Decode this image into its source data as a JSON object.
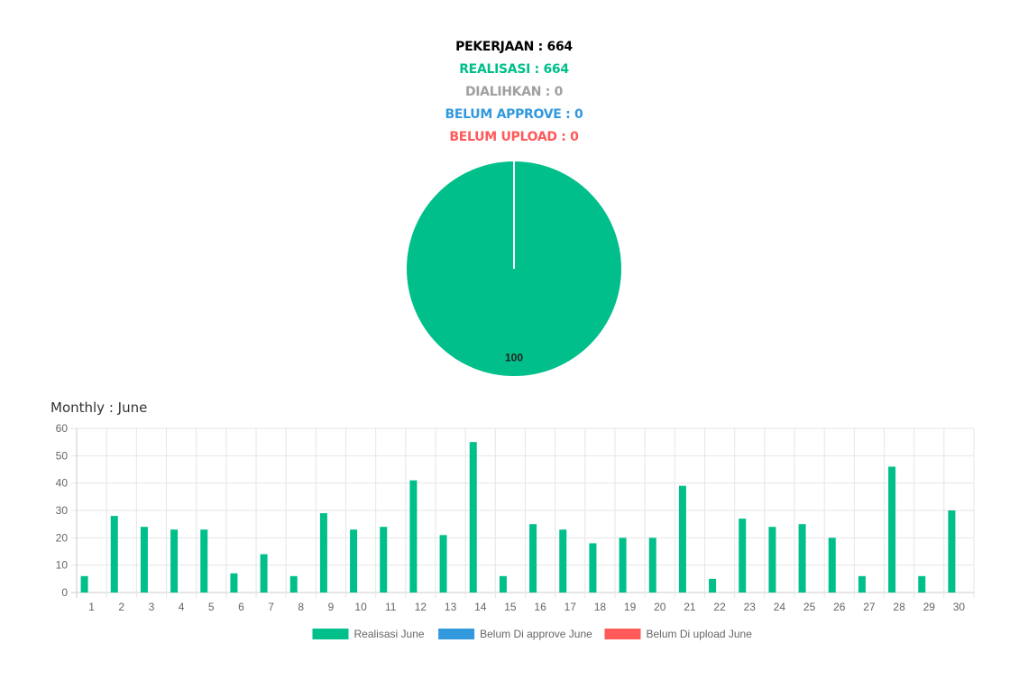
{
  "summary": {
    "pekerjaan": "PEKERJAAN : 664",
    "realisasi": "REALISASI : 664",
    "dialihkan": "DIALIHKAN : 0",
    "belum_approve": "BELUM APPROVE : 0",
    "belum_upload": "BELUM UPLOAD : 0"
  },
  "colors": {
    "realisasi": "#00bf8a",
    "dialihkan": "#a0a0a0",
    "belum_approve": "#3399dd",
    "belum_upload": "#ff5959",
    "pekerjaan": "#000000",
    "grid": "#e6e6e6",
    "axis_text": "#666666"
  },
  "monthly_title": "Monthly : June",
  "chart_data": [
    {
      "type": "pie",
      "slices": [
        {
          "value": 100,
          "label": "100",
          "color": "#00bf8a"
        }
      ]
    },
    {
      "type": "bar",
      "categories": [
        "1",
        "2",
        "3",
        "4",
        "5",
        "6",
        "7",
        "8",
        "9",
        "10",
        "11",
        "12",
        "13",
        "14",
        "15",
        "16",
        "17",
        "18",
        "19",
        "20",
        "21",
        "22",
        "23",
        "24",
        "25",
        "26",
        "27",
        "28",
        "29",
        "30"
      ],
      "series": [
        {
          "name": "Realisasi June",
          "color": "#00bf8a",
          "values": [
            6,
            28,
            24,
            23,
            23,
            7,
            14,
            6,
            29,
            23,
            24,
            41,
            21,
            55,
            6,
            25,
            23,
            18,
            20,
            20,
            39,
            5,
            27,
            24,
            25,
            20,
            6,
            46,
            6,
            30
          ]
        },
        {
          "name": "Belum Di approve June",
          "color": "#3399dd",
          "values": [
            0,
            0,
            0,
            0,
            0,
            0,
            0,
            0,
            0,
            0,
            0,
            0,
            0,
            0,
            0,
            0,
            0,
            0,
            0,
            0,
            0,
            0,
            0,
            0,
            0,
            0,
            0,
            0,
            0,
            0
          ]
        },
        {
          "name": "Belum Di upload June",
          "color": "#ff5959",
          "values": [
            0,
            0,
            0,
            0,
            0,
            0,
            0,
            0,
            0,
            0,
            0,
            0,
            0,
            0,
            0,
            0,
            0,
            0,
            0,
            0,
            0,
            0,
            0,
            0,
            0,
            0,
            0,
            0,
            0,
            0
          ]
        }
      ],
      "yticks": [
        "0",
        "10",
        "20",
        "30",
        "40",
        "50",
        "60"
      ],
      "ylim": [
        0,
        60
      ],
      "grid": true,
      "legend": "bottom"
    }
  ]
}
